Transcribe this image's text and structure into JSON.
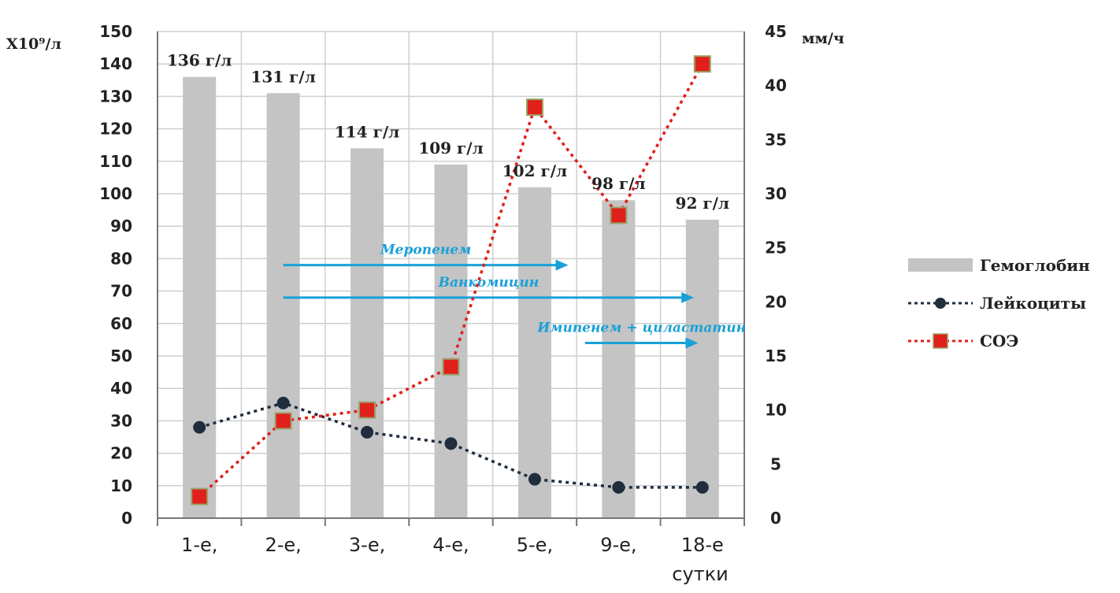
{
  "chart_data": {
    "type": "bar",
    "categories": [
      "1-е,",
      "2-е,",
      "3-е,",
      "4-е,",
      "5-е,",
      "9-е,",
      "18-е"
    ],
    "x_caption": "сутки",
    "left_axis": {
      "label": "Х10⁹/л",
      "range": [
        0,
        150
      ],
      "step": 10
    },
    "right_axis": {
      "label": "мм/ч",
      "range": [
        0,
        45
      ],
      "step": 5
    },
    "series": [
      {
        "name": "Гемоглобин",
        "type": "bar",
        "axis": "left",
        "color": "#c4c4c4",
        "values": [
          136,
          131,
          114,
          109,
          102,
          98,
          92
        ],
        "labels": [
          "136 г/л",
          "131 г/л",
          "114 г/л",
          "109 г/л",
          "102 г/л",
          "98 г/л",
          "92 г/л"
        ]
      },
      {
        "name": "Лейкоциты",
        "type": "line",
        "axis": "left",
        "color": "#1f2d3d",
        "dash": "dotted",
        "values": [
          28,
          35.5,
          26.5,
          23,
          12,
          9.5,
          9.5
        ]
      },
      {
        "name": "СОЭ",
        "type": "line",
        "axis": "right",
        "color": "#e0201a",
        "dash": "dotted",
        "values": [
          2,
          9,
          10,
          14,
          38,
          28,
          42
        ]
      }
    ],
    "annotations": [
      {
        "text": "Меропенем",
        "from_index": 1,
        "to_index": 4.4,
        "level": 78
      },
      {
        "text": "Ванкомицин",
        "from_index": 1,
        "to_index": 5.9,
        "level": 68
      },
      {
        "text": "Имипенем + циластатин",
        "from_index": 4.6,
        "to_index": 5.95,
        "level": 54
      }
    ],
    "legend_position": "right",
    "grid": true
  }
}
